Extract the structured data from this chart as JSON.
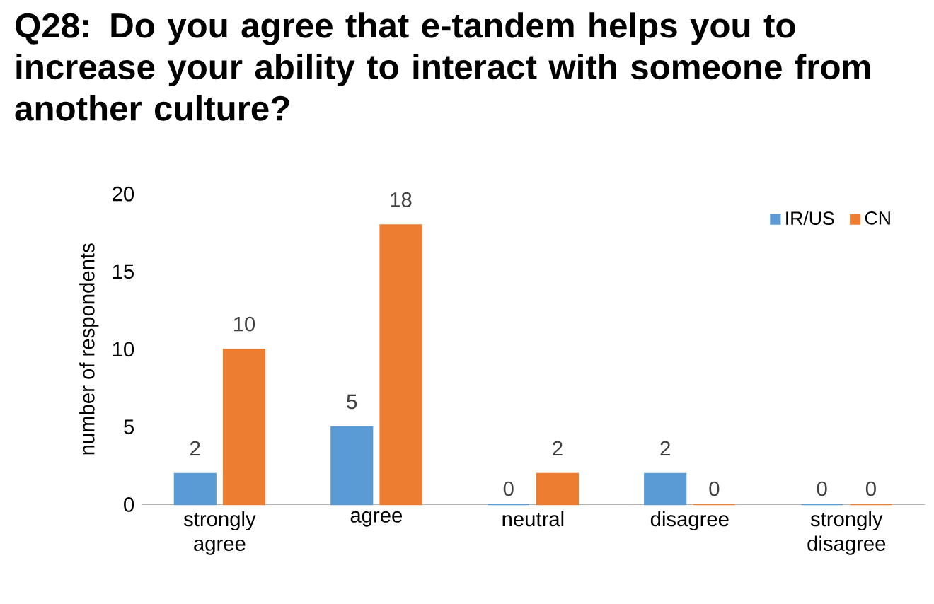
{
  "chart_data": {
    "type": "bar",
    "title": "Q28: Do you agree that e-tandem helps you to increase your ability to interact with someone from another culture?",
    "categories": [
      "strongly agree",
      "agree",
      "neutral",
      "disagree",
      "strongly disagree"
    ],
    "series": [
      {
        "name": "IR/US",
        "color": "#5b9bd5",
        "values": [
          2,
          5,
          0,
          2,
          0
        ]
      },
      {
        "name": "CN",
        "color": "#ed7d31",
        "values": [
          10,
          18,
          2,
          0,
          0
        ]
      }
    ],
    "ylabel": "number of respondents",
    "ylim": [
      0,
      20
    ],
    "yticks": [
      0,
      5,
      10,
      15,
      20
    ],
    "legend": "top right",
    "data_labels": true,
    "grid": false
  }
}
